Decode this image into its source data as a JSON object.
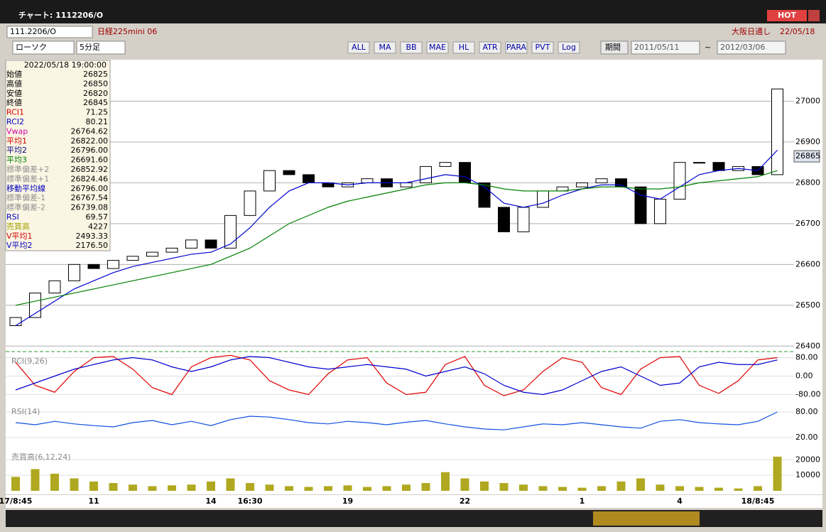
{
  "window": {
    "title": "チャート: 1112206/O",
    "hot": "HOT"
  },
  "toolbar": {
    "symbol": "111.2206/O",
    "name": "日経225mini 06",
    "session": "大阪日通し",
    "date": "22/05/18",
    "chart_kind": "ローソク",
    "interval": "5分足",
    "period": "期間",
    "from": "2011/05/11",
    "to": "2012/03/06",
    "buttons": [
      "ALL",
      "MA",
      "BB",
      "MAE",
      "HL",
      "ATR",
      "PARA",
      "PVT",
      "Log"
    ]
  },
  "info": {
    "time": "2022/05/18 19:00:00",
    "rows": [
      {
        "label": "始値",
        "value": "26825",
        "color": "#000000"
      },
      {
        "label": "高値",
        "value": "26850",
        "color": "#000000"
      },
      {
        "label": "安値",
        "value": "26820",
        "color": "#000000"
      },
      {
        "label": "終値",
        "value": "26845",
        "color": "#000000"
      },
      {
        "label": "RCI1",
        "value": "71.25",
        "color": "#d00000"
      },
      {
        "label": "RCI2",
        "value": "80.21",
        "color": "#0000c0"
      },
      {
        "label": "Vwap",
        "value": "26764.62",
        "color": "#d000a0"
      },
      {
        "label": "平均1",
        "value": "26822.00",
        "color": "#d00000"
      },
      {
        "label": "平均2",
        "value": "26796.00",
        "color": "#000080"
      },
      {
        "label": "平均3",
        "value": "26691.60",
        "color": "#008000"
      },
      {
        "label": "標準偏差+2",
        "value": "26852.92",
        "color": "#909090"
      },
      {
        "label": "標準偏差+1",
        "value": "26824.46",
        "color": "#909090"
      },
      {
        "label": "移動平均線",
        "value": "26796.00",
        "color": "#0000c0"
      },
      {
        "label": "標準偏差-1",
        "value": "26767.54",
        "color": "#909090"
      },
      {
        "label": "標準偏差-2",
        "value": "26739.08",
        "color": "#909090"
      },
      {
        "label": "RSI",
        "value": "69.57",
        "color": "#0000c0"
      },
      {
        "label": "売買高",
        "value": "4227",
        "color": "#a0a000"
      },
      {
        "label": "V平均1",
        "value": "2493.33",
        "color": "#d00000"
      },
      {
        "label": "V平均2",
        "value": "2176.50",
        "color": "#0000c0"
      }
    ]
  },
  "chart_data": [
    {
      "type": "candlestick",
      "categories": [
        "17/8:45",
        null,
        null,
        null,
        "11",
        null,
        null,
        null,
        null,
        null,
        "14",
        null,
        "16:30",
        null,
        null,
        null,
        null,
        "19",
        null,
        null,
        null,
        null,
        null,
        "22",
        null,
        null,
        null,
        null,
        null,
        "1",
        null,
        null,
        null,
        null,
        "4",
        null,
        null,
        null,
        "18/8:45",
        null
      ],
      "open": [
        26450,
        26470,
        26530,
        26560,
        26600,
        26590,
        26610,
        26620,
        26630,
        26640,
        26660,
        26640,
        26720,
        26780,
        26830,
        26820,
        26800,
        26790,
        26800,
        26810,
        26790,
        26800,
        26840,
        26850,
        26800,
        26740,
        26680,
        26740,
        26780,
        26790,
        26800,
        26810,
        26790,
        26700,
        26760,
        26850,
        26850,
        26830,
        26840,
        26820
      ],
      "close": [
        26470,
        26530,
        26560,
        26600,
        26590,
        26610,
        26620,
        26630,
        26640,
        26660,
        26640,
        26720,
        26780,
        26830,
        26820,
        26800,
        26790,
        26800,
        26810,
        26790,
        26800,
        26840,
        26850,
        26800,
        26740,
        26680,
        26740,
        26780,
        26790,
        26800,
        26810,
        26790,
        26700,
        26760,
        26850,
        26850,
        26830,
        26840,
        26820,
        27030
      ],
      "series": [
        {
          "name": "平均2",
          "color": "#0000d0",
          "values": [
            26450,
            26480,
            26510,
            26540,
            26560,
            26580,
            26595,
            26605,
            26615,
            26625,
            26630,
            26650,
            26690,
            26740,
            26780,
            26800,
            26800,
            26795,
            26800,
            26800,
            26800,
            26810,
            26820,
            26815,
            26790,
            26750,
            26740,
            26750,
            26770,
            26785,
            26795,
            26795,
            26770,
            26760,
            26790,
            26820,
            26830,
            26835,
            26830,
            26880
          ]
        },
        {
          "name": "平均3",
          "color": "#008000",
          "values": [
            26500,
            26510,
            26520,
            26530,
            26540,
            26550,
            26560,
            26570,
            26580,
            26590,
            26600,
            26620,
            26640,
            26670,
            26700,
            26720,
            26740,
            26755,
            26765,
            26775,
            26785,
            26795,
            26800,
            26800,
            26795,
            26785,
            26780,
            26780,
            26780,
            26785,
            26790,
            26790,
            26785,
            26785,
            26790,
            26800,
            26805,
            26810,
            26815,
            26830
          ]
        }
      ],
      "ylim": [
        26390,
        27100
      ],
      "yticks": [
        26400,
        26500,
        26600,
        26700,
        26800,
        26900,
        27000
      ],
      "last": 26865
    },
    {
      "type": "line",
      "title": "RCI(9,26)",
      "series": [
        {
          "name": "RCI1",
          "color": "#e00000",
          "values": [
            60,
            -40,
            -70,
            20,
            80,
            85,
            30,
            -50,
            -80,
            40,
            80,
            90,
            70,
            -20,
            -60,
            -80,
            10,
            70,
            80,
            -30,
            -80,
            -70,
            50,
            85,
            -40,
            -85,
            -60,
            20,
            80,
            60,
            -50,
            -80,
            30,
            80,
            85,
            -40,
            -75,
            -20,
            70,
            80
          ]
        },
        {
          "name": "RCI2",
          "color": "#0000d0",
          "values": [
            -60,
            -30,
            0,
            30,
            50,
            70,
            80,
            70,
            40,
            20,
            40,
            70,
            85,
            80,
            60,
            40,
            30,
            40,
            50,
            40,
            30,
            0,
            20,
            40,
            10,
            -40,
            -70,
            -80,
            -60,
            -20,
            20,
            40,
            0,
            -40,
            -30,
            40,
            60,
            50,
            50,
            70
          ]
        }
      ],
      "ylim": [
        -100,
        100
      ],
      "yticks": [
        {
          "value": 80,
          "label": "80.00"
        },
        {
          "value": 0,
          "label": "0.00"
        },
        {
          "value": -80,
          "label": "-80.00"
        }
      ]
    },
    {
      "type": "line",
      "title": "RSI(14)",
      "series": [
        {
          "name": "RSI",
          "color": "#1050e0",
          "values": [
            55,
            50,
            58,
            52,
            48,
            45,
            55,
            60,
            50,
            58,
            48,
            62,
            70,
            68,
            62,
            55,
            52,
            58,
            55,
            50,
            56,
            60,
            52,
            45,
            40,
            38,
            45,
            52,
            50,
            55,
            50,
            45,
            42,
            58,
            62,
            55,
            52,
            50,
            58,
            80
          ]
        }
      ],
      "ylim": [
        0,
        100
      ],
      "yticks": [
        {
          "value": 80,
          "label": "80.00"
        },
        {
          "value": 20,
          "label": "20.00"
        }
      ]
    },
    {
      "type": "bar",
      "title": "売買高(6,12,24)",
      "color": "#b0a820",
      "values": [
        9000,
        14000,
        11000,
        8000,
        6000,
        5000,
        4000,
        3000,
        3500,
        4000,
        6000,
        8000,
        5000,
        4000,
        3000,
        2500,
        3000,
        3500,
        2500,
        3000,
        4000,
        5000,
        12000,
        8000,
        6000,
        5000,
        4000,
        3000,
        2500,
        2000,
        3000,
        6000,
        8000,
        4000,
        3000,
        2500,
        2000,
        1500,
        3000,
        22000
      ],
      "ylim": [
        0,
        27000
      ],
      "yticks": [
        20000,
        10000
      ]
    }
  ]
}
